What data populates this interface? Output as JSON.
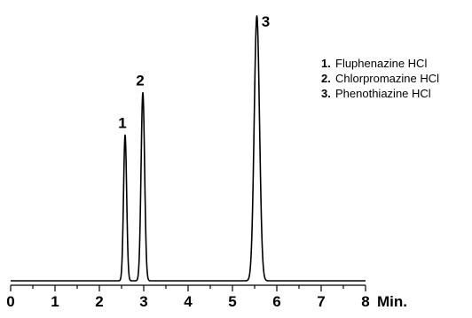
{
  "chart_data": {
    "type": "line",
    "xlabel": "Min.",
    "xlim": [
      0,
      8
    ],
    "ylim": [
      0,
      100
    ],
    "x_ticks": [
      "0",
      "1",
      "2",
      "3",
      "4",
      "5",
      "6",
      "7",
      "8"
    ],
    "grid": false,
    "legend_position": "top-right",
    "peaks": [
      {
        "label": "1",
        "time": 2.58,
        "height": 55,
        "width": 0.035
      },
      {
        "label": "2",
        "time": 2.98,
        "height": 71,
        "width": 0.04
      },
      {
        "label": "3",
        "time": 5.55,
        "height": 100,
        "width": 0.06
      }
    ],
    "legend": [
      {
        "num": "1.",
        "name": "Fluphenazine HCl"
      },
      {
        "num": "2.",
        "name": "Chlorpromazine HCl"
      },
      {
        "num": "3.",
        "name": "Phenothiazine HCl"
      }
    ],
    "colors": {
      "line": "#000000"
    }
  }
}
